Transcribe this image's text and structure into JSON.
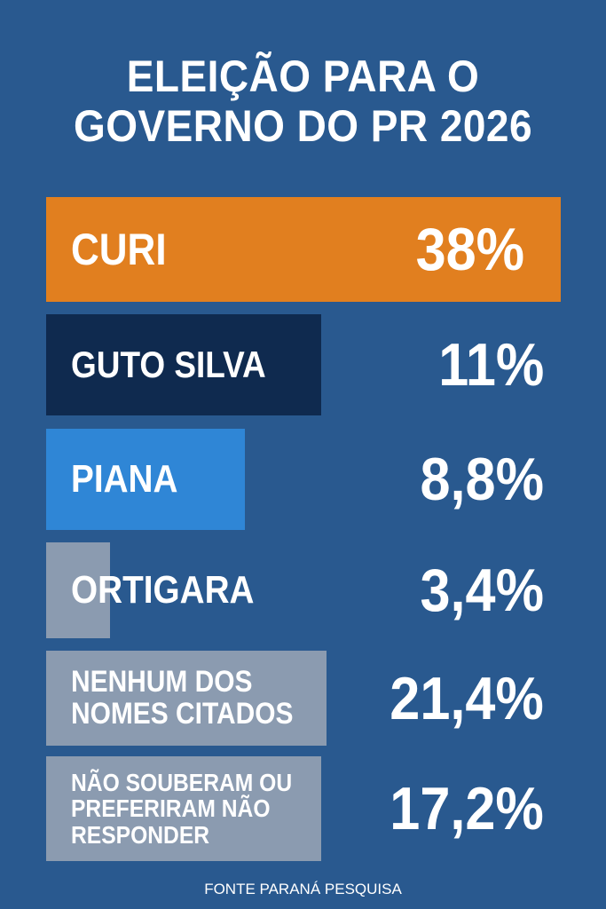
{
  "title_lines": [
    "ELEIÇÃO PARA O",
    "GOVERNO DO PR 2026"
  ],
  "source": "FONTE PARANÁ PESQUISA",
  "chart_data": {
    "type": "bar",
    "orientation": "horizontal",
    "title": "ELEIÇÃO PARA O GOVERNO DO PR 2026",
    "categories": [
      "CURI",
      "GUTO SILVA",
      "PIANA",
      "ORTIGARA",
      "NENHUM DOS NOMES CITADOS",
      "NÃO SOUBERAM OU PREFERIRAM NÃO RESPONDER"
    ],
    "values": [
      38,
      11,
      8.8,
      3.4,
      21.4,
      17.2
    ],
    "value_labels": [
      "38%",
      "11%",
      "8,8%",
      "3,4%",
      "21,4%",
      "17,2%"
    ],
    "label_lines": [
      "CURI",
      "GUTO SILVA",
      "PIANA",
      "ORTIGARA",
      "NENHUM DOS\nNOMES CITADOS",
      "NÃO SOUBERAM OU\nPREFERIRAM NÃO\nRESPONDER"
    ],
    "colors": [
      "#e17f1f",
      "#0f2a4f",
      "#2f86d6",
      "#8b9bb0",
      "#8b9bb0",
      "#8b9bb0"
    ],
    "background": "#29598f",
    "grid": false,
    "source": "FONTE PARANÁ PESQUISA"
  }
}
